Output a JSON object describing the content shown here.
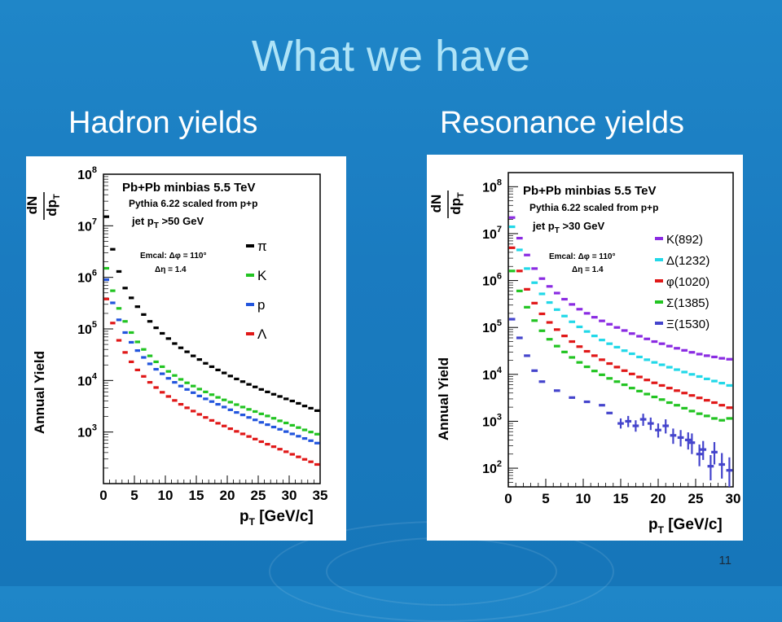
{
  "slide": {
    "title": "What we have",
    "left_subtitle": "Hadron yields",
    "right_subtitle": "Resonance yields",
    "page_number": "11"
  },
  "chart_data": [
    {
      "type": "scatter",
      "yscale": "log",
      "xlim": [
        0,
        35
      ],
      "ylim": [
        100,
        100000000
      ],
      "xticks": [
        0,
        5,
        10,
        15,
        20,
        25,
        30,
        35
      ],
      "yticks": [
        "10^3",
        "10^4",
        "10^5",
        "10^6",
        "10^7",
        "10^8"
      ],
      "ylabel": "Annual Yield",
      "ylabel_frac_num": "dN",
      "ylabel_frac_den": "dp",
      "ylabel_frac_sub": "T",
      "xlabel_main": "p",
      "xlabel_sub": "T",
      "xlabel_unit": " [GeV/c]",
      "text_lines": [
        "Pb+Pb minbias 5.5 TeV",
        "Pythia 6.22 scaled from p+p"
      ],
      "jet_cut_prefix": "jet p",
      "jet_cut_sub": "T",
      "jet_cut_suffix": " >50 GeV",
      "emcal_line1": "Emcal: Δφ = 110°",
      "emcal_line2": "Δη = 1.4",
      "series": [
        {
          "name": "π",
          "color": "#000000",
          "x": [
            0.5,
            1.5,
            2.5,
            3.5,
            4.5,
            5.5,
            6.5,
            7.5,
            8.5,
            9.5,
            10.5,
            11.5,
            12.5,
            13.5,
            14.5,
            15.5,
            16.5,
            17.5,
            18.5,
            19.5,
            20.5,
            21.5,
            22.5,
            23.5,
            24.5,
            25.5,
            26.5,
            27.5,
            28.5,
            29.5,
            30.5,
            31.5,
            32.5,
            33.5,
            34.5
          ],
          "y": [
            15000000,
            3500000,
            1300000,
            620000,
            400000,
            270000,
            190000,
            140000,
            105000,
            82000,
            65000,
            52000,
            43000,
            36000,
            30000,
            25500,
            21500,
            18500,
            16000,
            14000,
            12200,
            10700,
            9500,
            8400,
            7500,
            6700,
            6000,
            5400,
            4900,
            4400,
            4000,
            3600,
            3200,
            2900,
            2600
          ]
        },
        {
          "name": "K",
          "color": "#22c422",
          "x": [
            0.5,
            1.5,
            2.5,
            3.5,
            4.5,
            5.5,
            6.5,
            7.5,
            8.5,
            9.5,
            10.5,
            11.5,
            12.5,
            13.5,
            14.5,
            15.5,
            16.5,
            17.5,
            18.5,
            19.5,
            20.5,
            21.5,
            22.5,
            23.5,
            24.5,
            25.5,
            26.5,
            27.5,
            28.5,
            29.5,
            30.5,
            31.5,
            32.5,
            33.5,
            34.5
          ],
          "y": [
            1500000,
            550000,
            250000,
            140000,
            85000,
            56000,
            40000,
            30000,
            23000,
            18500,
            15000,
            12500,
            10500,
            9000,
            7800,
            6800,
            6000,
            5300,
            4700,
            4200,
            3800,
            3400,
            3050,
            2750,
            2500,
            2250,
            2050,
            1850,
            1650,
            1500,
            1350,
            1220,
            1100,
            1000,
            910
          ]
        },
        {
          "name": "p",
          "color": "#2255dd",
          "x": [
            0.5,
            1.5,
            2.5,
            3.5,
            4.5,
            5.5,
            6.5,
            7.5,
            8.5,
            9.5,
            10.5,
            11.5,
            12.5,
            13.5,
            14.5,
            15.5,
            16.5,
            17.5,
            18.5,
            19.5,
            20.5,
            21.5,
            22.5,
            23.5,
            24.5,
            25.5,
            26.5,
            27.5,
            28.5,
            29.5,
            30.5,
            31.5,
            32.5,
            33.5,
            34.5
          ],
          "y": [
            900000,
            320000,
            150000,
            85000,
            55000,
            38000,
            28000,
            21000,
            16500,
            13500,
            11000,
            9200,
            7800,
            6700,
            5800,
            5000,
            4400,
            3900,
            3450,
            3050,
            2700,
            2400,
            2150,
            1920,
            1720,
            1540,
            1390,
            1250,
            1130,
            1020,
            920,
            830,
            750,
            680,
            610
          ]
        },
        {
          "name": "Λ",
          "color": "#e01818",
          "x": [
            0.5,
            1.5,
            2.5,
            3.5,
            4.5,
            5.5,
            6.5,
            7.5,
            8.5,
            9.5,
            10.5,
            11.5,
            12.5,
            13.5,
            14.5,
            15.5,
            16.5,
            17.5,
            18.5,
            19.5,
            20.5,
            21.5,
            22.5,
            23.5,
            24.5,
            25.5,
            26.5,
            27.5,
            28.5,
            29.5,
            30.5,
            31.5,
            32.5,
            33.5,
            34.5
          ],
          "y": [
            380000,
            130000,
            60000,
            35000,
            23000,
            16000,
            12000,
            9200,
            7300,
            5900,
            4900,
            4100,
            3450,
            2950,
            2550,
            2200,
            1920,
            1680,
            1480,
            1310,
            1160,
            1030,
            920,
            820,
            730,
            650,
            580,
            520,
            465,
            415,
            370,
            330,
            295,
            265,
            235
          ]
        }
      ]
    },
    {
      "type": "scatter",
      "yscale": "log",
      "xlim": [
        0,
        30
      ],
      "ylim": [
        40,
        200000000
      ],
      "xticks": [
        0,
        5,
        10,
        15,
        20,
        25,
        30
      ],
      "yticks": [
        "10^2",
        "10^3",
        "10^4",
        "10^5",
        "10^6",
        "10^7",
        "10^8"
      ],
      "ylabel": "Annual Yield",
      "ylabel_frac_num": "dN",
      "ylabel_frac_den": "dp",
      "ylabel_frac_sub": "T",
      "xlabel_main": "p",
      "xlabel_sub": "T",
      "xlabel_unit": " [GeV/c]",
      "text_lines": [
        "Pb+Pb minbias 5.5 TeV",
        "Pythia 6.22 scaled from p+p"
      ],
      "jet_cut_prefix": "jet p",
      "jet_cut_sub": "T",
      "jet_cut_suffix": " >30 GeV",
      "emcal_line1": "Emcal: Δφ = 110°",
      "emcal_line2": "Δη = 1.4",
      "series": [
        {
          "name": "K(892)",
          "color": "#8a2be2",
          "x": [
            0.5,
            1.5,
            2.5,
            3.5,
            4.5,
            5.5,
            6.5,
            7.5,
            8.5,
            9.5,
            10.5,
            11.5,
            12.5,
            13.5,
            14.5,
            15.5,
            16.5,
            17.5,
            18.5,
            19.5,
            20.5,
            21.5,
            22.5,
            23.5,
            24.5,
            25.5,
            26.5,
            27.5,
            28.5,
            29.5
          ],
          "y": [
            22000000,
            8000000,
            3500000,
            1800000,
            1100000,
            750000,
            540000,
            400000,
            310000,
            245000,
            200000,
            165000,
            138000,
            117000,
            100000,
            86000,
            74000,
            65000,
            57000,
            50000,
            45000,
            40000,
            36000,
            32500,
            29500,
            27000,
            25000,
            23500,
            22000,
            21000
          ]
        },
        {
          "name": "Δ(1232)",
          "color": "#22d8e8",
          "x": [
            0.5,
            1.5,
            2.5,
            3.5,
            4.5,
            5.5,
            6.5,
            7.5,
            8.5,
            9.5,
            10.5,
            11.5,
            12.5,
            13.5,
            14.5,
            15.5,
            16.5,
            17.5,
            18.5,
            19.5,
            20.5,
            21.5,
            22.5,
            23.5,
            24.5,
            25.5,
            26.5,
            27.5,
            28.5,
            29.5
          ],
          "y": [
            14000000,
            4500000,
            1800000,
            900000,
            520000,
            340000,
            240000,
            175000,
            132000,
            103000,
            82000,
            66000,
            54000,
            45000,
            38000,
            32000,
            27500,
            23500,
            20500,
            18000,
            16000,
            14200,
            12600,
            11200,
            10000,
            9000,
            8000,
            7200,
            6500,
            5800
          ]
        },
        {
          "name": "φ(1020)",
          "color": "#e01818",
          "x": [
            0.5,
            1.5,
            2.5,
            3.5,
            4.5,
            5.5,
            6.5,
            7.5,
            8.5,
            9.5,
            10.5,
            11.5,
            12.5,
            13.5,
            14.5,
            15.5,
            16.5,
            17.5,
            18.5,
            19.5,
            20.5,
            21.5,
            22.5,
            23.5,
            24.5,
            25.5,
            26.5,
            27.5,
            28.5,
            29.5
          ],
          "y": [
            5000000,
            1600000,
            650000,
            330000,
            195000,
            128000,
            90000,
            66000,
            50000,
            39000,
            31000,
            25000,
            20500,
            17000,
            14300,
            12000,
            10200,
            8800,
            7600,
            6600,
            5800,
            5100,
            4500,
            4000,
            3550,
            3150,
            2800,
            2500,
            2200,
            1950
          ]
        },
        {
          "name": "Σ(1385)",
          "color": "#22c422",
          "x": [
            0.5,
            1.5,
            2.5,
            3.5,
            4.5,
            5.5,
            6.5,
            7.5,
            8.5,
            9.5,
            10.5,
            11.5,
            12.5,
            13.5,
            14.5,
            15.5,
            16.5,
            17.5,
            18.5,
            19.5,
            20.5,
            21.5,
            22.5,
            23.5,
            24.5,
            25.5,
            26.5,
            27.5,
            28.5,
            29.5
          ],
          "y": [
            1600000,
            600000,
            270000,
            140000,
            85000,
            56000,
            40000,
            30000,
            23000,
            18000,
            14500,
            11800,
            9800,
            8200,
            7000,
            6000,
            5100,
            4400,
            3800,
            3300,
            2900,
            2500,
            2200,
            1900,
            1650,
            1450,
            1300,
            1150,
            1050,
            1150
          ]
        },
        {
          "name": "Ξ(1530)",
          "color": "#4444cc",
          "x": [
            0.5,
            1.5,
            2.5,
            3.5,
            4.5,
            6.5,
            8.5,
            10.5,
            12.5,
            13.5,
            15,
            16,
            17,
            18,
            19,
            20,
            21,
            22,
            23,
            24,
            24.5,
            25.5,
            26,
            27,
            27.5,
            28.5,
            29.5
          ],
          "y": [
            150000,
            60000,
            25000,
            12000,
            7000,
            4500,
            3200,
            2600,
            2200,
            1500,
            900,
            1000,
            800,
            1100,
            900,
            650,
            800,
            500,
            450,
            400,
            350,
            200,
            250,
            110,
            220,
            120,
            90
          ],
          "err_lo": [
            0,
            0,
            0,
            0,
            0,
            0,
            0,
            0,
            0,
            0,
            200,
            250,
            200,
            300,
            250,
            200,
            250,
            170,
            160,
            150,
            150,
            90,
            100,
            55,
            100,
            60,
            50
          ],
          "err_hi": [
            0,
            0,
            0,
            0,
            0,
            0,
            0,
            0,
            0,
            0,
            250,
            300,
            250,
            350,
            300,
            250,
            300,
            200,
            200,
            180,
            200,
            120,
            130,
            80,
            140,
            90,
            80
          ]
        }
      ]
    }
  ]
}
